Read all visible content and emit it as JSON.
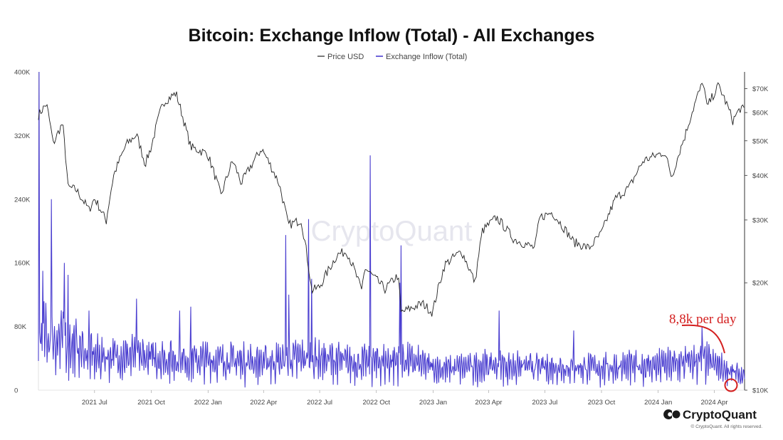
{
  "chart_data": {
    "type": "line",
    "title": "Bitcoin: Exchange Inflow (Total) - All Exchanges",
    "legend": [
      "Price USD",
      "Exchange Inflow (Total)"
    ],
    "legend_placement": "top-center",
    "grid": false,
    "x_ticks": [
      "2021 Jul",
      "2021 Oct",
      "2022 Jan",
      "2022 Apr",
      "2022 Jul",
      "2022 Oct",
      "2023 Jan",
      "2023 Apr",
      "2023 Jul",
      "2023 Oct",
      "2024 Jan",
      "2024 Apr"
    ],
    "x_range": [
      "2021-04-01",
      "2024-05-20"
    ],
    "y_left": {
      "ticks": [
        "0",
        "80K",
        "160K",
        "240K",
        "320K",
        "400K"
      ],
      "range": [
        0,
        400000
      ]
    },
    "y_right": {
      "scale": "log",
      "ticks": [
        "$10K",
        "$20K",
        "$30K",
        "$40K",
        "$50K",
        "$60K",
        "$70K"
      ],
      "range": [
        10000,
        78000
      ]
    },
    "series": [
      {
        "name": "Price USD",
        "axis": "right",
        "color": "#222222",
        "points": [
          [
            "2021-04-01",
            59000
          ],
          [
            "2021-04-14",
            63500
          ],
          [
            "2021-04-25",
            49000
          ],
          [
            "2021-05-10",
            56000
          ],
          [
            "2021-05-19",
            37000
          ],
          [
            "2021-06-01",
            36500
          ],
          [
            "2021-06-22",
            32000
          ],
          [
            "2021-07-01",
            34500
          ],
          [
            "2021-07-20",
            29800
          ],
          [
            "2021-08-01",
            40000
          ],
          [
            "2021-08-22",
            49000
          ],
          [
            "2021-09-07",
            52000
          ],
          [
            "2021-09-21",
            43000
          ],
          [
            "2021-10-01",
            48000
          ],
          [
            "2021-10-20",
            64000
          ],
          [
            "2021-11-10",
            68000
          ],
          [
            "2021-11-26",
            54000
          ],
          [
            "2021-12-04",
            48000
          ],
          [
            "2021-12-31",
            46000
          ],
          [
            "2022-01-22",
            35000
          ],
          [
            "2022-02-10",
            44000
          ],
          [
            "2022-02-24",
            38000
          ],
          [
            "2022-03-29",
            47500
          ],
          [
            "2022-04-26",
            38000
          ],
          [
            "2022-05-11",
            29000
          ],
          [
            "2022-06-01",
            30000
          ],
          [
            "2022-06-18",
            19000
          ],
          [
            "2022-07-01",
            19500
          ],
          [
            "2022-07-30",
            24000
          ],
          [
            "2022-08-14",
            24500
          ],
          [
            "2022-09-07",
            19000
          ],
          [
            "2022-09-12",
            22000
          ],
          [
            "2022-10-15",
            19200
          ],
          [
            "2022-11-05",
            21000
          ],
          [
            "2022-11-10",
            16500
          ],
          [
            "2022-12-15",
            17500
          ],
          [
            "2022-12-31",
            16500
          ],
          [
            "2023-01-20",
            22500
          ],
          [
            "2023-02-16",
            24500
          ],
          [
            "2023-03-10",
            20000
          ],
          [
            "2023-03-22",
            28000
          ],
          [
            "2023-04-14",
            30500
          ],
          [
            "2023-05-12",
            26500
          ],
          [
            "2023-06-15",
            25000
          ],
          [
            "2023-06-23",
            30500
          ],
          [
            "2023-07-13",
            31500
          ],
          [
            "2023-08-17",
            26000
          ],
          [
            "2023-09-11",
            25000
          ],
          [
            "2023-10-01",
            27500
          ],
          [
            "2023-10-24",
            34500
          ],
          [
            "2023-11-15",
            37000
          ],
          [
            "2023-12-08",
            44000
          ],
          [
            "2024-01-11",
            46500
          ],
          [
            "2024-01-23",
            39500
          ],
          [
            "2024-02-14",
            52000
          ],
          [
            "2024-03-05",
            67000
          ],
          [
            "2024-03-14",
            73000
          ],
          [
            "2024-03-20",
            62000
          ],
          [
            "2024-04-08",
            71500
          ],
          [
            "2024-05-01",
            57000
          ],
          [
            "2024-05-14",
            62000
          ],
          [
            "2024-05-20",
            60500
          ]
        ]
      },
      {
        "name": "Exchange Inflow (Total)",
        "axis": "left",
        "color": "#4b3fd0",
        "baseline": [
          [
            "2021-04-01",
            90000
          ],
          [
            "2021-05-15",
            82000
          ],
          [
            "2021-07-01",
            55000
          ],
          [
            "2021-09-01",
            58000
          ],
          [
            "2021-11-01",
            52000
          ],
          [
            "2022-01-15",
            50000
          ],
          [
            "2022-04-15",
            48000
          ],
          [
            "2022-06-15",
            55000
          ],
          [
            "2022-09-01",
            45000
          ],
          [
            "2022-11-15",
            50000
          ],
          [
            "2023-01-15",
            35000
          ],
          [
            "2023-04-01",
            42000
          ],
          [
            "2023-07-01",
            38000
          ],
          [
            "2023-10-01",
            38000
          ],
          [
            "2024-01-15",
            42000
          ],
          [
            "2024-03-15",
            50000
          ],
          [
            "2024-05-20",
            22000
          ]
        ],
        "spikes": [
          [
            "2021-04-02",
            400000
          ],
          [
            "2021-04-08",
            150000
          ],
          [
            "2021-04-22",
            240000
          ],
          [
            "2021-05-13",
            160000
          ],
          [
            "2021-05-19",
            145000
          ],
          [
            "2021-06-22",
            100000
          ],
          [
            "2021-09-07",
            115000
          ],
          [
            "2021-11-16",
            100000
          ],
          [
            "2021-12-04",
            105000
          ],
          [
            "2022-05-07",
            195000
          ],
          [
            "2022-05-12",
            120000
          ],
          [
            "2022-06-13",
            215000
          ],
          [
            "2022-06-18",
            140000
          ],
          [
            "2022-09-21",
            295000
          ],
          [
            "2022-11-08",
            135000
          ],
          [
            "2022-11-10",
            182000
          ],
          [
            "2023-04-18",
            100000
          ],
          [
            "2023-08-17",
            75000
          ],
          [
            "2024-03-12",
            80000
          ]
        ]
      }
    ],
    "annotation": {
      "text": "8,8k per day",
      "marker": "circle",
      "color": "#d42020"
    }
  },
  "watermark": "CryptoQuant",
  "brand": {
    "name": "CryptoQuant",
    "copyright": "© CryptoQuant. All rights reserved."
  }
}
